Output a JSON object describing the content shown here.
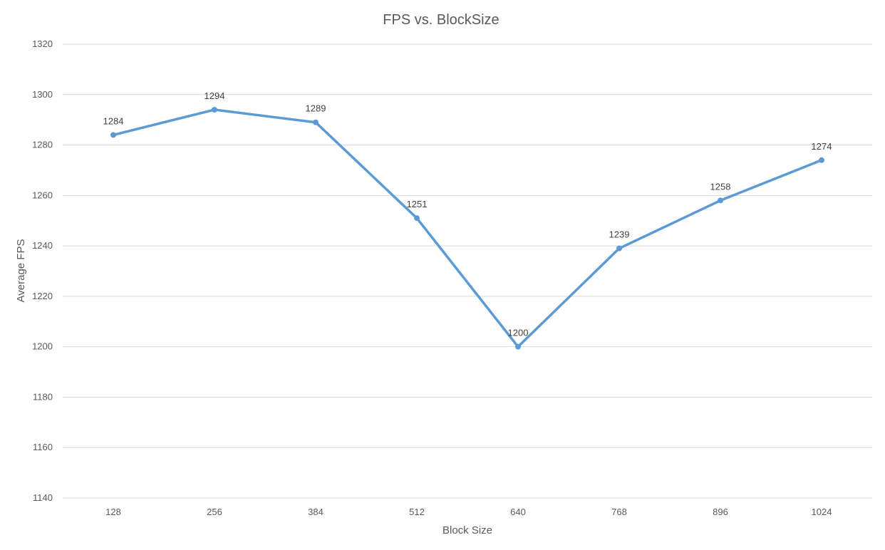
{
  "chart_data": {
    "type": "line",
    "title": "FPS vs. BlockSize",
    "xlabel": "Block Size",
    "ylabel": "Average FPS",
    "categories": [
      "128",
      "256",
      "384",
      "512",
      "640",
      "768",
      "896",
      "1024"
    ],
    "series": [
      {
        "values": [
          1284,
          1294,
          1289,
          1251,
          1200,
          1239,
          1258,
          1274
        ],
        "color": "#5b9bd5"
      }
    ],
    "data_labels": true,
    "ylim": [
      1140,
      1320
    ],
    "yticks": [
      1140,
      1160,
      1180,
      1200,
      1220,
      1240,
      1260,
      1280,
      1300,
      1320
    ],
    "grid": true,
    "legend": "none"
  }
}
